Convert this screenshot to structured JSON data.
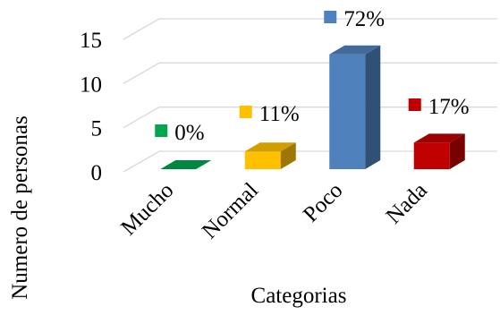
{
  "chart_data": {
    "type": "bar",
    "style": "3d-column",
    "categories": [
      "Mucho",
      "Normal",
      "Poco",
      "Nada"
    ],
    "values": [
      0,
      2,
      13,
      3
    ],
    "data_labels": [
      "0%",
      "11%",
      "72%",
      "17%"
    ],
    "colors": [
      "#00a650",
      "#ffc000",
      "#4f81bd",
      "#c00000"
    ],
    "xlabel": "Categorias",
    "ylabel": "Numero de personas",
    "ylim": [
      0,
      15
    ],
    "yticks": [
      0,
      5,
      10,
      15
    ],
    "grid": true,
    "legend": "none"
  }
}
